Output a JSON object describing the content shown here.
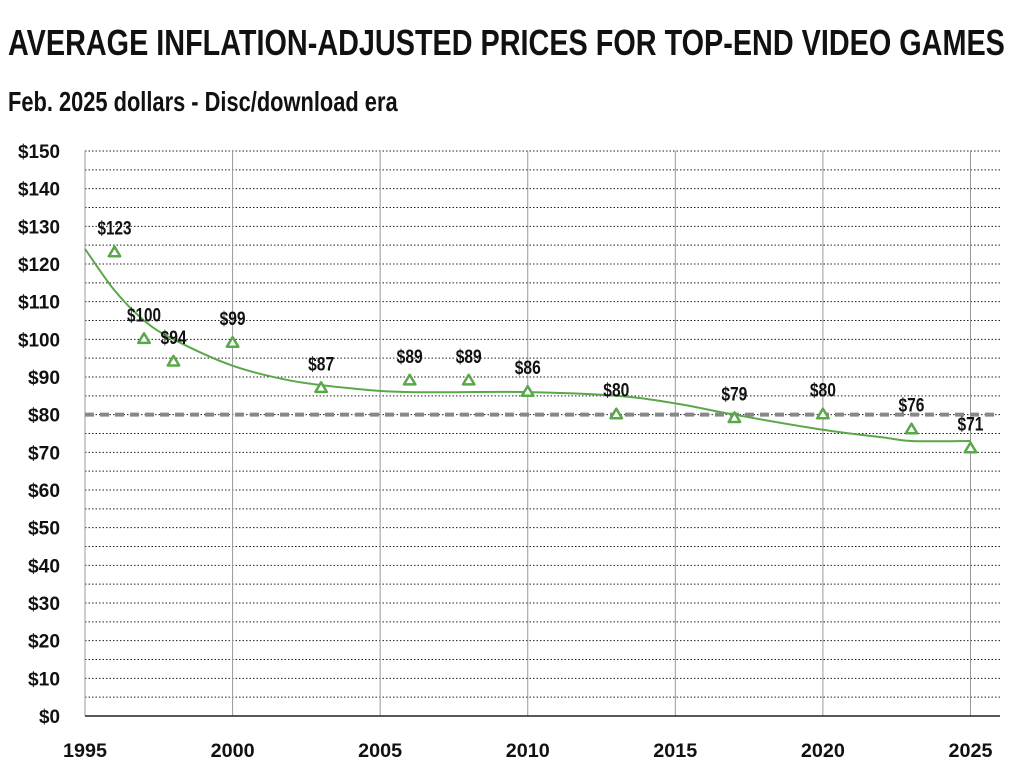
{
  "header": {
    "title": "AVERAGE INFLATION-ADJUSTED PRICES FOR TOP-END VIDEO GAMES",
    "subtitle": "Feb. 2025 dollars - Disc/download era"
  },
  "colors": {
    "series": "#5aa84a",
    "reference_line": "#888888",
    "grid": "#222222",
    "text": "#111111"
  },
  "chart_data": {
    "type": "scatter",
    "title": "AVERAGE INFLATION-ADJUSTED PRICES FOR TOP-END VIDEO GAMES",
    "subtitle": "Feb. 2025 dollars - Disc/download era",
    "xlim": [
      1995,
      2026
    ],
    "ylim": [
      0,
      150
    ],
    "x_ticks": [
      1995,
      2000,
      2005,
      2010,
      2015,
      2020,
      2025
    ],
    "x_tick_labels": [
      "1995",
      "2000",
      "2005",
      "2010",
      "2015",
      "2020",
      "2025"
    ],
    "y_ticks": [
      0,
      10,
      20,
      30,
      40,
      50,
      60,
      70,
      80,
      90,
      100,
      110,
      120,
      130,
      140,
      150
    ],
    "y_tick_labels": [
      "$0",
      "$10",
      "$20",
      "$30",
      "$40",
      "$50",
      "$60",
      "$70",
      "$80",
      "$90",
      "$100",
      "$110",
      "$120",
      "$130",
      "$140",
      "$150"
    ],
    "y_minor_step": 5,
    "grid": true,
    "marker": "triangle-open",
    "series": [
      {
        "points": [
          {
            "x": 1996,
            "y": 123,
            "label": "$123"
          },
          {
            "x": 1997,
            "y": 100,
            "label": "$100"
          },
          {
            "x": 1998,
            "y": 94,
            "label": "$94"
          },
          {
            "x": 2000,
            "y": 99,
            "label": "$99"
          },
          {
            "x": 2003,
            "y": 87,
            "label": "$87"
          },
          {
            "x": 2006,
            "y": 89,
            "label": "$89"
          },
          {
            "x": 2008,
            "y": 89,
            "label": "$89"
          },
          {
            "x": 2010,
            "y": 86,
            "label": "$86"
          },
          {
            "x": 2013,
            "y": 80,
            "label": "$80"
          },
          {
            "x": 2017,
            "y": 79,
            "label": "$79"
          },
          {
            "x": 2020,
            "y": 80,
            "label": "$80"
          },
          {
            "x": 2023,
            "y": 76,
            "label": "$76"
          },
          {
            "x": 2025,
            "y": 71,
            "label": "$71"
          }
        ]
      }
    ],
    "trend_line": {
      "type": "smoothed",
      "points": [
        {
          "x": 1995,
          "y": 124
        },
        {
          "x": 1996,
          "y": 113
        },
        {
          "x": 1997,
          "y": 105
        },
        {
          "x": 1998,
          "y": 100
        },
        {
          "x": 2000,
          "y": 93
        },
        {
          "x": 2002,
          "y": 89
        },
        {
          "x": 2004,
          "y": 87
        },
        {
          "x": 2006,
          "y": 86
        },
        {
          "x": 2010,
          "y": 86
        },
        {
          "x": 2013,
          "y": 85
        },
        {
          "x": 2015,
          "y": 83
        },
        {
          "x": 2017,
          "y": 80
        },
        {
          "x": 2020,
          "y": 76
        },
        {
          "x": 2022,
          "y": 74
        },
        {
          "x": 2023,
          "y": 73
        },
        {
          "x": 2025,
          "y": 73
        }
      ]
    },
    "reference_line": {
      "y": 80,
      "style": "dashed"
    }
  }
}
